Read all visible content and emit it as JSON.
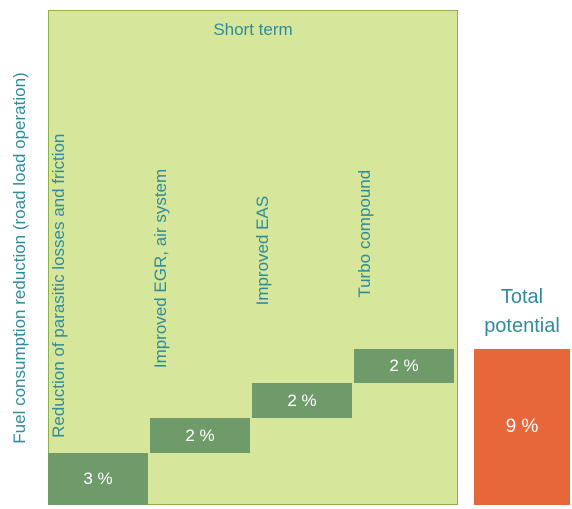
{
  "chart_data": {
    "type": "waterfall",
    "title": "Short term",
    "y_label": "Fuel consumption reduction (road load operation)",
    "categories": [
      "Reduction of parasitic losses and friction",
      "Improved EGR, air system",
      "Improved EAS",
      "Turbo compound"
    ],
    "values": [
      3,
      2,
      2,
      2
    ],
    "value_labels": [
      "3 %",
      "2 %",
      "2 %",
      "2 %"
    ],
    "color": "#6f9a6a",
    "total_label": "Total potential",
    "total": 9,
    "total_value_label": "9 %",
    "total_color": "#e8673a",
    "ylim": [
      0,
      28.5
    ]
  }
}
